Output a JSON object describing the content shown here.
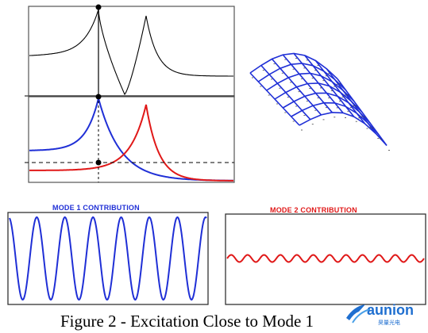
{
  "figure": {
    "caption": "Figure 2 -  Excitation Close to Mode 1",
    "mode1_title": "MODE 1 CONTRIBUTION",
    "mode2_title": "MODE 2 CONTRIBUTION",
    "colors": {
      "mode1": "#1f2fd6",
      "mode2": "#e01818",
      "total": "#000000"
    },
    "mode1_cycles": 7,
    "mode2_cycles": 12
  },
  "logo": {
    "text": "aunion",
    "subtext": "昊量光电"
  }
}
